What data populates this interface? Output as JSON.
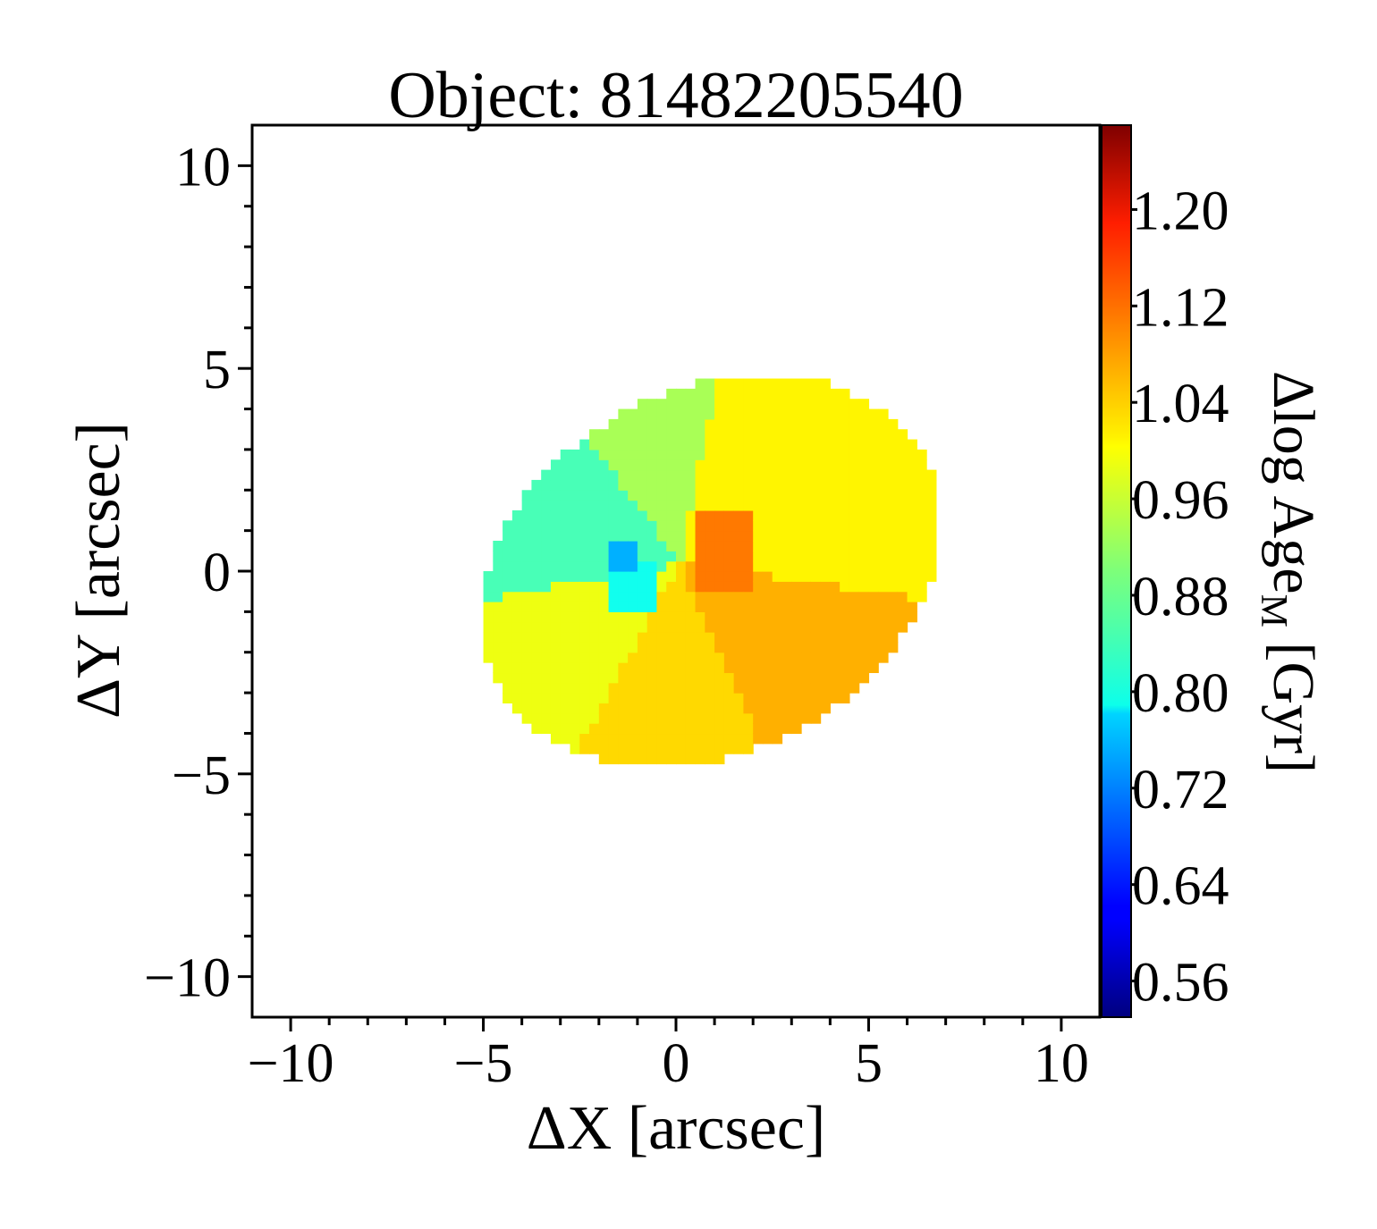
{
  "chart_data": {
    "type": "heatmap",
    "title": "Object: 81482205540",
    "xlabel": "ΔX [arcsec]",
    "ylabel": "ΔY [arcsec]",
    "colorbar_label_main": "Δlog Age",
    "colorbar_label_sub": "M",
    "colorbar_label_unit": " [Gyr]",
    "xlim": [
      -11,
      11
    ],
    "ylim": [
      -11,
      11
    ],
    "x_ticks": [
      -10,
      -5,
      0,
      5,
      10
    ],
    "y_ticks": [
      -10,
      -5,
      0,
      5,
      10
    ],
    "x_tick_labels": [
      "−10",
      "−5",
      "0",
      "5",
      "10"
    ],
    "y_tick_labels": [
      "−10",
      "−5",
      "0",
      "5",
      "10"
    ],
    "minor_tick_step": 1,
    "colorbar_range": [
      0.53,
      1.27
    ],
    "colorbar_ticks": [
      0.56,
      0.64,
      0.72,
      0.8,
      0.88,
      0.96,
      1.04,
      1.12,
      1.2
    ],
    "colorbar_tick_labels": [
      "0.56",
      "0.64",
      "0.72",
      "0.80",
      "0.88",
      "0.96",
      "1.04",
      "1.12",
      "1.20"
    ],
    "colormap": "jet",
    "galaxy_ellipse": {
      "center": [
        0.9,
        0.0
      ],
      "semi_major": 6.2,
      "semi_minor": 4.5,
      "pa_deg": 24
    },
    "regions": [
      {
        "name": "inner-core-blue",
        "value": 0.75,
        "center": [
          -1.3,
          0.4
        ],
        "size": [
          0.8,
          0.7
        ]
      },
      {
        "name": "inner-core-cyan",
        "value": 0.82,
        "center": [
          -1.2,
          -0.3
        ],
        "size": [
          1.2,
          1.3
        ]
      },
      {
        "name": "inner-core-orange",
        "value": 1.09,
        "center": [
          1.2,
          0.5
        ],
        "size": [
          1.6,
          2.2
        ]
      },
      {
        "name": "sector-top-center",
        "value": 0.93,
        "angle_range": [
          78,
          128
        ]
      },
      {
        "name": "sector-upper-left",
        "value": 0.86,
        "angle_range": [
          128,
          190
        ]
      },
      {
        "name": "sector-left",
        "value": 0.98,
        "angle_range": [
          190,
          240
        ]
      },
      {
        "name": "sector-bottom-left",
        "value": 1.02,
        "angle_range": [
          240,
          295
        ]
      },
      {
        "name": "sector-bottom-right",
        "value": 1.05,
        "angle_range": [
          295,
          352
        ]
      },
      {
        "name": "sector-right-top",
        "value": 1.0,
        "angle_range": [
          352,
          438
        ]
      }
    ]
  }
}
